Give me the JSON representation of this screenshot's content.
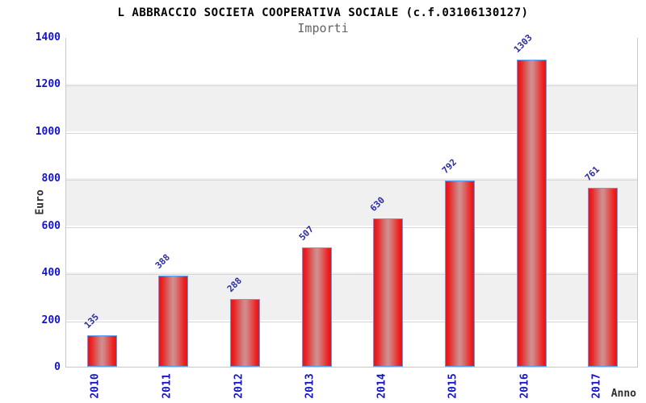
{
  "header": {
    "title": "L ABBRACCIO SOCIETA COOPERATIVA SOCIALE (c.f.03106130127)",
    "subtitle": "Importi"
  },
  "chart_data": {
    "type": "bar",
    "title": "L ABBRACCIO SOCIETA COOPERATIVA SOCIALE (c.f.03106130127)",
    "subtitle": "Importi",
    "categories": [
      "2010",
      "2011",
      "2012",
      "2013",
      "2014",
      "2015",
      "2016",
      "2017"
    ],
    "values": [
      135,
      388,
      288,
      507,
      630,
      792,
      1303,
      761
    ],
    "xlabel": "Anno",
    "ylabel": "Euro",
    "ylim": [
      0,
      1400
    ],
    "ytick_step": 200,
    "yticks": [
      0,
      200,
      400,
      600,
      800,
      1000,
      1200,
      1400
    ],
    "grid": "alternating-horizontal-bands",
    "legend": "none",
    "colors": {
      "title_text": "#000000",
      "subtitle_text": "#636363",
      "axis_tick_text": "#1414cc",
      "value_label_text": "#2a2aa5",
      "axis_name_text": "#2e2e2e",
      "bar_edge_red": "#ec1212",
      "bar_mid_highlight": "#cf9090",
      "bar_border_blue": "#5b9ff0",
      "band_gray": "#f0f0f0",
      "band_white": "#ffffff",
      "grid_line": "#d6d6d6",
      "plot_border": "#c9c9c9",
      "background": "#ffffff"
    }
  }
}
